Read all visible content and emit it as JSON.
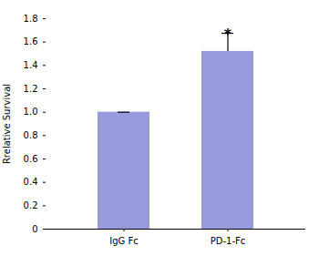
{
  "chart_data": {
    "type": "bar",
    "categories": [
      "IgG Fc",
      "PD-1-Fc"
    ],
    "values": [
      1.0,
      1.52
    ],
    "errors": [
      0.0,
      0.155
    ],
    "color": "#9999dd",
    "ylabel": "Rrelative Survival",
    "ylim": [
      0,
      1.8
    ],
    "yticks": [
      0,
      0.2,
      0.4,
      0.6,
      0.8,
      {
        "value": 1.0,
        "label": "1.0"
      },
      1.2,
      1.4,
      1.6,
      1.8
    ],
    "annotations": [
      {
        "text": "*",
        "x": "PD-1-Fc",
        "y": 1.69
      }
    ],
    "grid": false
  }
}
